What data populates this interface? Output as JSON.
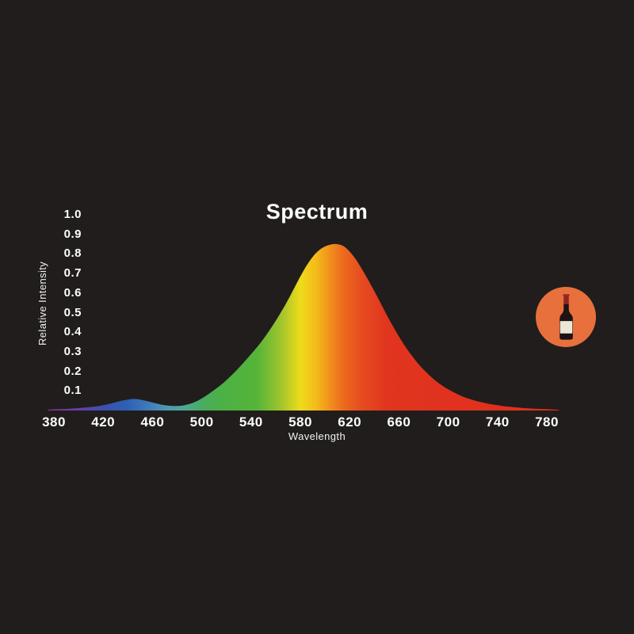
{
  "title": "Spectrum",
  "background_color": "#201d1c",
  "text_color": "#fdfdfd",
  "axes": {
    "y_label": "Relative Intensity",
    "x_label": "Wavelength",
    "y_ticks": [
      "1.0",
      "0.9",
      "0.8",
      "0.7",
      "0.6",
      "0.5",
      "0.4",
      "0.3",
      "0.2",
      "0.1"
    ],
    "x_ticks": [
      "380",
      "420",
      "460",
      "500",
      "540",
      "580",
      "620",
      "660",
      "700",
      "740",
      "780"
    ]
  },
  "icon": {
    "name": "wine-bottle-badge",
    "circle_color": "#e8703c",
    "bottle_body_color": "#1d1214",
    "bottle_foil_color": "#8e2424",
    "bottle_foil_top_color": "#a23232",
    "bottle_label_color": "#eae6d8"
  },
  "chart_data": {
    "type": "area",
    "title": "Spectrum",
    "xlabel": "Wavelength",
    "ylabel": "Relative Intensity",
    "xlim": [
      375,
      790
    ],
    "ylim": [
      0,
      1.0
    ],
    "grid": false,
    "legend": "none",
    "x": [
      375,
      380,
      385,
      390,
      395,
      400,
      405,
      410,
      415,
      420,
      425,
      430,
      435,
      440,
      445,
      450,
      455,
      460,
      465,
      470,
      475,
      480,
      485,
      490,
      495,
      500,
      505,
      510,
      515,
      520,
      525,
      530,
      535,
      540,
      545,
      550,
      555,
      560,
      565,
      570,
      575,
      580,
      585,
      590,
      595,
      600,
      605,
      610,
      615,
      620,
      625,
      630,
      635,
      640,
      645,
      650,
      655,
      660,
      665,
      670,
      675,
      680,
      685,
      690,
      695,
      700,
      705,
      710,
      715,
      720,
      725,
      730,
      735,
      740,
      745,
      750,
      755,
      760,
      765,
      770,
      775,
      780,
      785,
      790
    ],
    "y": [
      0.004,
      0.006,
      0.007,
      0.008,
      0.01,
      0.012,
      0.015,
      0.018,
      0.022,
      0.027,
      0.034,
      0.042,
      0.05,
      0.056,
      0.059,
      0.056,
      0.049,
      0.041,
      0.033,
      0.027,
      0.024,
      0.023,
      0.026,
      0.033,
      0.045,
      0.062,
      0.082,
      0.104,
      0.128,
      0.155,
      0.185,
      0.218,
      0.252,
      0.288,
      0.325,
      0.365,
      0.41,
      0.458,
      0.51,
      0.565,
      0.625,
      0.685,
      0.74,
      0.785,
      0.818,
      0.838,
      0.848,
      0.85,
      0.84,
      0.812,
      0.772,
      0.722,
      0.668,
      0.61,
      0.55,
      0.49,
      0.432,
      0.378,
      0.328,
      0.284,
      0.244,
      0.209,
      0.178,
      0.151,
      0.128,
      0.108,
      0.091,
      0.076,
      0.064,
      0.054,
      0.045,
      0.038,
      0.032,
      0.027,
      0.022,
      0.019,
      0.016,
      0.013,
      0.011,
      0.009,
      0.008,
      0.007,
      0.005,
      0.003
    ],
    "peak": {
      "wavelength": 610,
      "intensity": 0.85
    },
    "gradient_stops": [
      {
        "wavelength": 375,
        "color": "#8f3390"
      },
      {
        "wavelength": 400,
        "color": "#6b3fa4"
      },
      {
        "wavelength": 420,
        "color": "#3b4fae"
      },
      {
        "wavelength": 440,
        "color": "#2e61b3"
      },
      {
        "wavelength": 455,
        "color": "#3f78bb"
      },
      {
        "wavelength": 470,
        "color": "#4f95b5"
      },
      {
        "wavelength": 485,
        "color": "#4fa897"
      },
      {
        "wavelength": 500,
        "color": "#48ac62"
      },
      {
        "wavelength": 515,
        "color": "#4bb046"
      },
      {
        "wavelength": 545,
        "color": "#56b438"
      },
      {
        "wavelength": 565,
        "color": "#a3c52c"
      },
      {
        "wavelength": 580,
        "color": "#eedc1b"
      },
      {
        "wavelength": 592,
        "color": "#f4bd19"
      },
      {
        "wavelength": 603,
        "color": "#f1941c"
      },
      {
        "wavelength": 615,
        "color": "#ec6a1e"
      },
      {
        "wavelength": 630,
        "color": "#e64b20"
      },
      {
        "wavelength": 650,
        "color": "#e1351f"
      },
      {
        "wavelength": 790,
        "color": "#de2e1e"
      }
    ]
  }
}
